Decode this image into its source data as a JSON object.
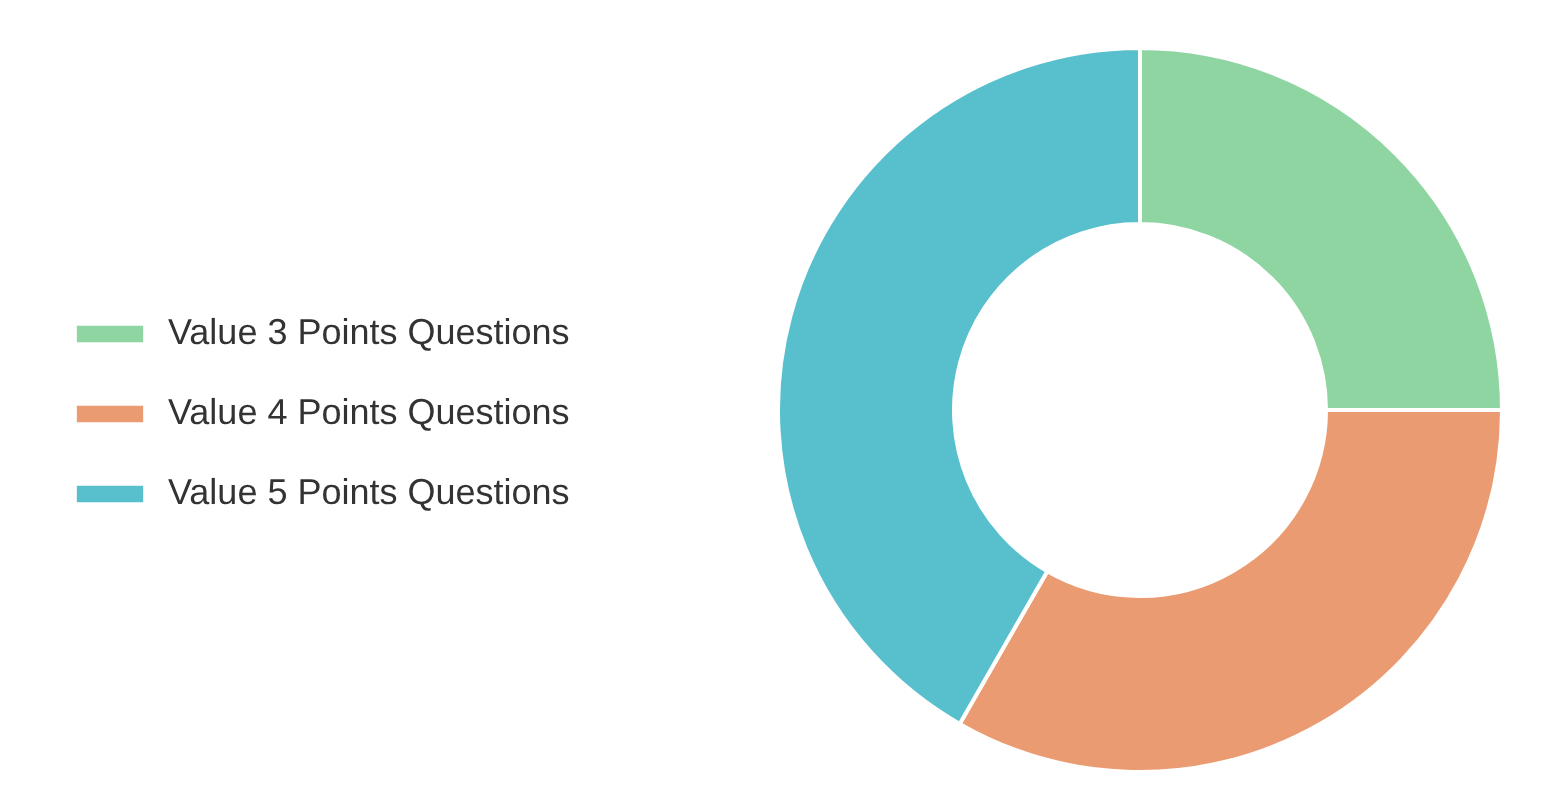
{
  "chart_data": {
    "type": "donut",
    "categories": [
      "Value 3 Points Questions",
      "Value 4 Points Questions",
      "Value 5 Points Questions"
    ],
    "values": [
      25,
      33.3,
      41.7
    ],
    "colors": [
      "#8fd5a2",
      "#eb9b71",
      "#58bfcd"
    ],
    "legend": "left"
  }
}
